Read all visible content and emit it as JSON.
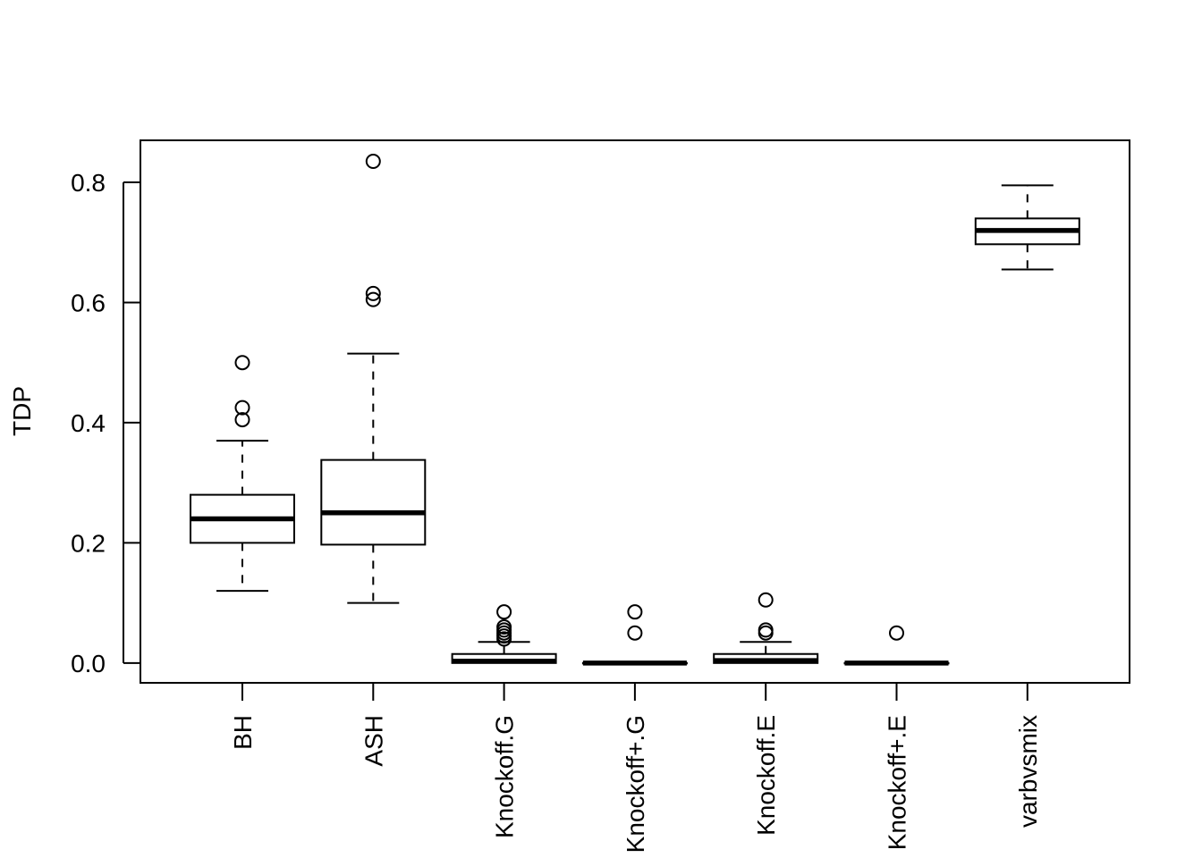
{
  "chart_data": {
    "type": "boxplot",
    "title": "",
    "xlabel": "",
    "ylabel": "TDP",
    "ylim": [
      -0.033,
      0.87
    ],
    "yticks": [
      0.0,
      0.2,
      0.4,
      0.6,
      0.8
    ],
    "ytick_labels": [
      "0.0",
      "0.2",
      "0.4",
      "0.6",
      "0.8"
    ],
    "categories": [
      "BH",
      "ASH",
      "Knockoff.G",
      "Knockoff+.G",
      "Knockoff.E",
      "Knockoff+.E",
      "varbvsmix"
    ],
    "boxes": [
      {
        "name": "BH",
        "whisker_low": 0.12,
        "q1": 0.2,
        "median": 0.24,
        "q3": 0.28,
        "whisker_high": 0.37,
        "outliers": [
          0.405,
          0.425,
          0.5
        ]
      },
      {
        "name": "ASH",
        "whisker_low": 0.1,
        "q1": 0.197,
        "median": 0.25,
        "q3": 0.338,
        "whisker_high": 0.515,
        "outliers": [
          0.605,
          0.615,
          0.835
        ]
      },
      {
        "name": "Knockoff.G",
        "whisker_low": 0.0,
        "q1": 0.0,
        "median": 0.003,
        "q3": 0.015,
        "whisker_high": 0.035,
        "outliers": [
          0.04,
          0.045,
          0.05,
          0.055,
          0.06,
          0.085
        ]
      },
      {
        "name": "Knockoff+.G",
        "whisker_low": 0.0,
        "q1": 0.0,
        "median": 0.0,
        "q3": 0.0,
        "whisker_high": 0.0,
        "outliers": [
          0.05,
          0.085
        ]
      },
      {
        "name": "Knockoff.E",
        "whisker_low": 0.0,
        "q1": 0.0,
        "median": 0.004,
        "q3": 0.015,
        "whisker_high": 0.035,
        "outliers": [
          0.05,
          0.055,
          0.105
        ]
      },
      {
        "name": "Knockoff+.E",
        "whisker_low": 0.0,
        "q1": 0.0,
        "median": 0.0,
        "q3": 0.0,
        "whisker_high": 0.0,
        "outliers": [
          0.05
        ]
      },
      {
        "name": "varbvsmix",
        "whisker_low": 0.655,
        "q1": 0.697,
        "median": 0.72,
        "q3": 0.74,
        "whisker_high": 0.795,
        "outliers": []
      }
    ]
  }
}
